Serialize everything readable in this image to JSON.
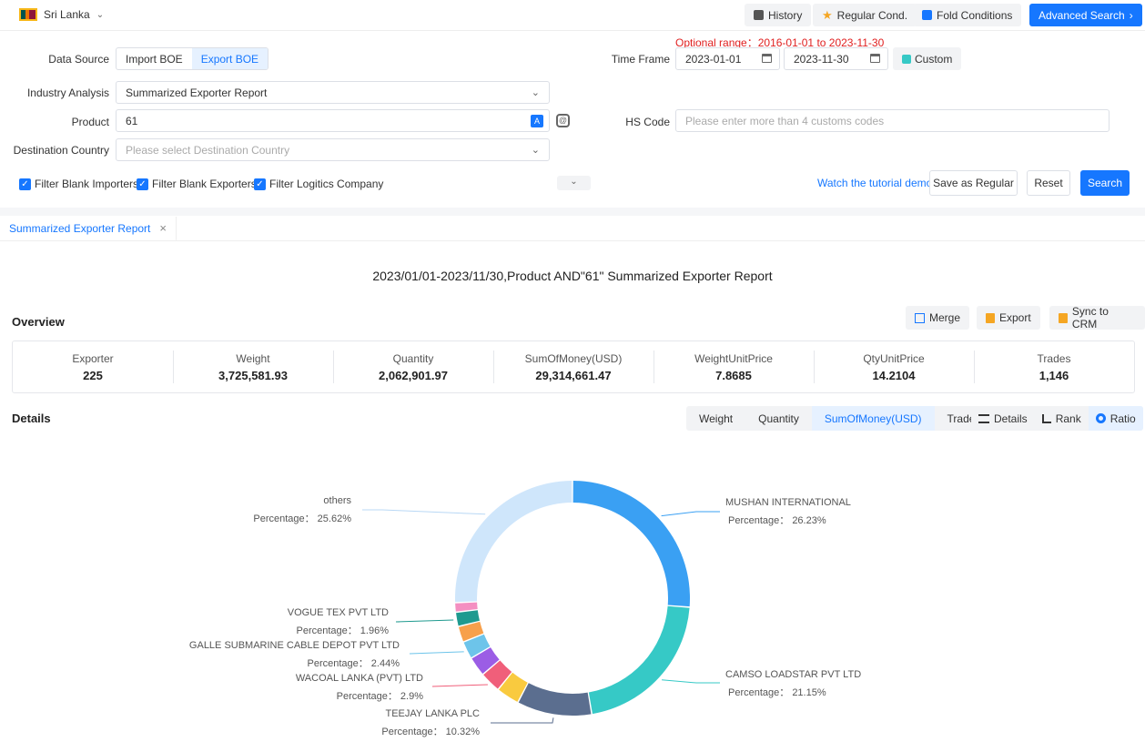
{
  "topbar": {
    "country": "Sri Lanka",
    "history": "History",
    "regular_cond": "Regular Cond.",
    "fold_conditions": "Fold Conditions",
    "advanced_search": "Advanced Search"
  },
  "filters": {
    "optional_range": "Optional range：2016-01-01 to 2023-11-30",
    "data_source_label": "Data Source",
    "data_source_options": [
      "Import BOE",
      "Export BOE"
    ],
    "data_source_selected": "Export BOE",
    "time_frame_label": "Time Frame",
    "start_date": "2023-01-01",
    "end_date": "2023-11-30",
    "custom": "Custom",
    "industry_label": "Industry Analysis",
    "industry_value": "Summarized Exporter Report",
    "product_label": "Product",
    "product_value": "61",
    "hs_label": "HS Code",
    "hs_placeholder": "Please enter more than 4 customs codes",
    "dest_label": "Destination Country",
    "dest_placeholder": "Please select Destination Country",
    "checks": [
      "Filter Blank Importers",
      "Filter Blank Exporters",
      "Filter Logitics Company"
    ],
    "tutorial": "Watch the tutorial demo",
    "save_regular": "Save as Regular",
    "reset": "Reset",
    "search": "Search"
  },
  "tab": {
    "label": "Summarized Exporter Report"
  },
  "report": {
    "title": "2023/01/01-2023/11/30,Product AND\"61\" Summarized Exporter Report",
    "overview": "Overview",
    "merge": "Merge",
    "export": "Export",
    "sync": "Sync to CRM",
    "stats": [
      {
        "label": "Exporter",
        "value": "225"
      },
      {
        "label": "Weight",
        "value": "3,725,581.93"
      },
      {
        "label": "Quantity",
        "value": "2,062,901.97"
      },
      {
        "label": "SumOfMoney(USD)",
        "value": "29,314,661.47"
      },
      {
        "label": "WeightUnitPrice",
        "value": "7.8685"
      },
      {
        "label": "QtyUnitPrice",
        "value": "14.2104"
      },
      {
        "label": "Trades",
        "value": "1,146"
      }
    ],
    "details": "Details",
    "metric_tabs": [
      "Weight",
      "Quantity",
      "SumOfMoney(USD)",
      "Trades"
    ],
    "metric_selected": "SumOfMoney(USD)",
    "view_tabs": [
      "Details",
      "Rank",
      "Ratio"
    ],
    "view_selected": "Ratio"
  },
  "chart_data": {
    "type": "pie",
    "donut": true,
    "percentage_label": "Percentage：",
    "slices": [
      {
        "name": "MUSHAN INTERNATIONAL",
        "value": 26.23,
        "color": "#3aa0f3",
        "labeled": true
      },
      {
        "name": "CAMSO LOADSTAR PVT LTD",
        "value": 21.15,
        "color": "#36c9c6",
        "labeled": true
      },
      {
        "name": "TEEJAY LANKA PLC",
        "value": 10.32,
        "color": "#5b6e8f",
        "labeled": true
      },
      {
        "name": "",
        "value": 3.2,
        "color": "#f9ca3f",
        "labeled": false
      },
      {
        "name": "WACOAL LANKA (PVT) LTD",
        "value": 2.9,
        "color": "#f05f7a",
        "labeled": true
      },
      {
        "name": "",
        "value": 2.7,
        "color": "#9b5de5",
        "labeled": false
      },
      {
        "name": "GALLE SUBMARINE CABLE DEPOT PVT LTD",
        "value": 2.44,
        "color": "#6dc4ea",
        "labeled": true
      },
      {
        "name": "",
        "value": 2.2,
        "color": "#f7a04b",
        "labeled": false
      },
      {
        "name": "VOGUE TEX PVT LTD",
        "value": 1.96,
        "color": "#1f9a8f",
        "labeled": true
      },
      {
        "name": "",
        "value": 1.3,
        "color": "#f48fc1",
        "labeled": false
      },
      {
        "name": "others",
        "value": 25.62,
        "color": "#cfe6fb",
        "labeled": true
      }
    ],
    "percent_text": {
      "MUSHAN INTERNATIONAL": "26.23%",
      "CAMSO LOADSTAR PVT LTD": "21.15%",
      "TEEJAY LANKA PLC": "10.32%",
      "WACOAL LANKA (PVT) LTD": "2.9%",
      "GALLE SUBMARINE CABLE DEPOT PVT LTD": "2.44%",
      "VOGUE TEX PVT LTD": "1.96%",
      "others": "25.62%"
    }
  }
}
